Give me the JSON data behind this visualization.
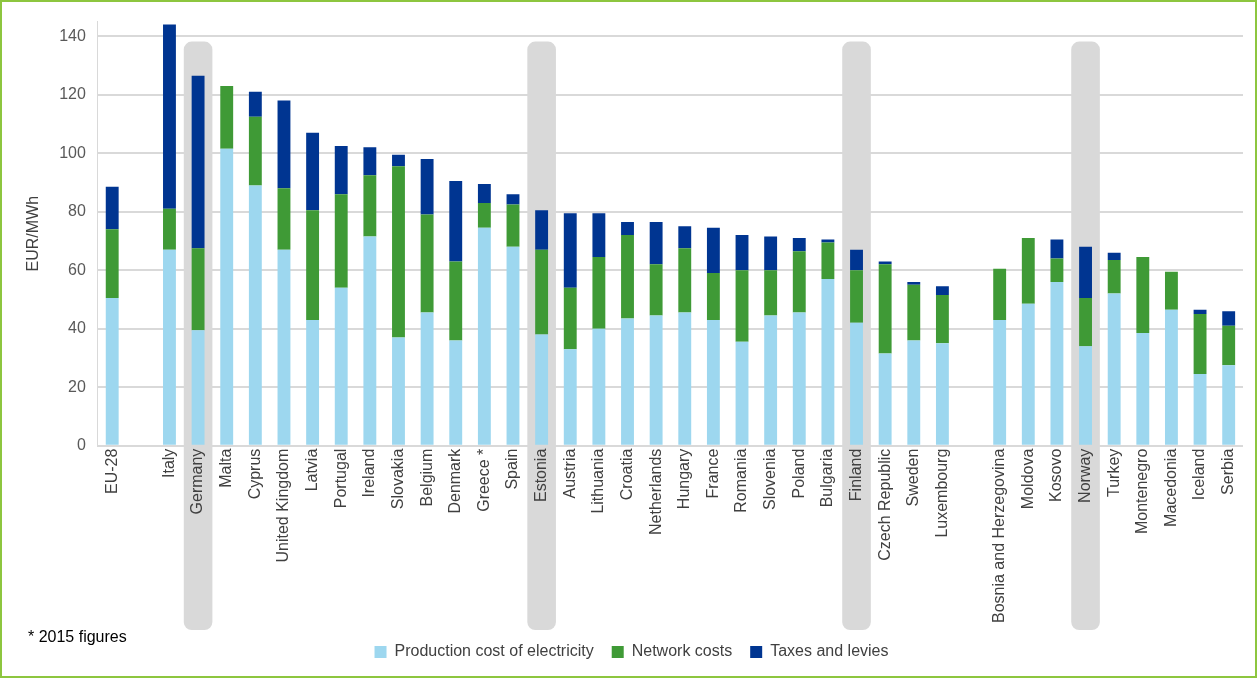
{
  "chart_data": {
    "type": "bar",
    "stacked": true,
    "ylabel": "EUR/MWh",
    "ylim": [
      0,
      145
    ],
    "yticks": [
      0,
      20,
      40,
      60,
      80,
      100,
      120,
      140
    ],
    "grid": "y",
    "legend": "bottom",
    "categories": [
      "EU-28",
      null,
      "Italy",
      "Germany",
      "Malta",
      "Cyprus",
      "United Kingdom",
      "Latvia",
      "Portugal",
      "Ireland",
      "Slovakia",
      "Belgium",
      "Denmark",
      "Greece *",
      "Spain",
      "Estonia",
      "Austria",
      "Lithuania",
      "Croatia",
      "Netherlands",
      "Hungary",
      "France",
      "Romania",
      "Slovenia",
      "Poland",
      "Bulgaria",
      "Finland",
      "Czech Republic",
      "Sweden",
      "Luxembourg",
      null,
      "Bosnia and Herzegovina",
      "Moldova",
      "Kosovo",
      "Norway",
      "Turkey",
      "Montenegro",
      "Macedonia",
      "Iceland",
      "Serbia"
    ],
    "series": [
      {
        "name": "Production cost of electricity",
        "color": "#9dd7ef",
        "values": [
          50.5,
          null,
          67,
          39.5,
          101.5,
          89,
          67,
          43,
          54,
          71.5,
          37,
          45.5,
          36,
          74.5,
          68,
          38,
          33,
          40,
          43.5,
          44.5,
          45.5,
          43,
          35.5,
          44.5,
          45.5,
          57,
          42,
          31.5,
          36,
          35,
          null,
          43,
          48.5,
          56,
          34,
          52,
          38.5,
          46.5,
          24.5,
          27.5
        ]
      },
      {
        "name": "Network costs",
        "color": "#3f9a36",
        "values": [
          23.5,
          null,
          14,
          28,
          21.5,
          23.5,
          21,
          37.5,
          32,
          21,
          58.5,
          33.5,
          27,
          8.5,
          14.5,
          29,
          21,
          24.5,
          28.5,
          17.5,
          22,
          16,
          24.5,
          15.5,
          21,
          12.5,
          18,
          30.5,
          19,
          16.5,
          null,
          17.5,
          22.5,
          8,
          16.5,
          11.5,
          26,
          13,
          20.5,
          13.5
        ]
      },
      {
        "name": "Taxes and levies",
        "color": "#003591",
        "values": [
          14.5,
          null,
          63,
          59,
          0,
          8.5,
          30,
          26.5,
          16.5,
          9.5,
          4,
          19,
          27.5,
          6.5,
          3.5,
          13.5,
          25.5,
          15,
          4.5,
          14.5,
          7.5,
          15.5,
          12,
          11.5,
          4.5,
          1,
          7,
          1,
          1,
          3,
          null,
          0,
          0,
          6.5,
          17.5,
          2.5,
          0,
          0,
          1.5,
          5
        ]
      }
    ],
    "bands": [
      {
        "axis": "x",
        "from": "Germany",
        "to": "Germany",
        "color": "#d9d9d9"
      },
      {
        "axis": "x",
        "from": "Estonia",
        "to": "Estonia",
        "color": "#d9d9d9"
      },
      {
        "axis": "x",
        "from": "Finland",
        "to": "Finland",
        "color": "#d9d9d9"
      },
      {
        "axis": "x",
        "from": "Norway",
        "to": "Norway",
        "color": "#d9d9d9"
      }
    ],
    "annotations": [
      "* 2015 figures"
    ]
  }
}
